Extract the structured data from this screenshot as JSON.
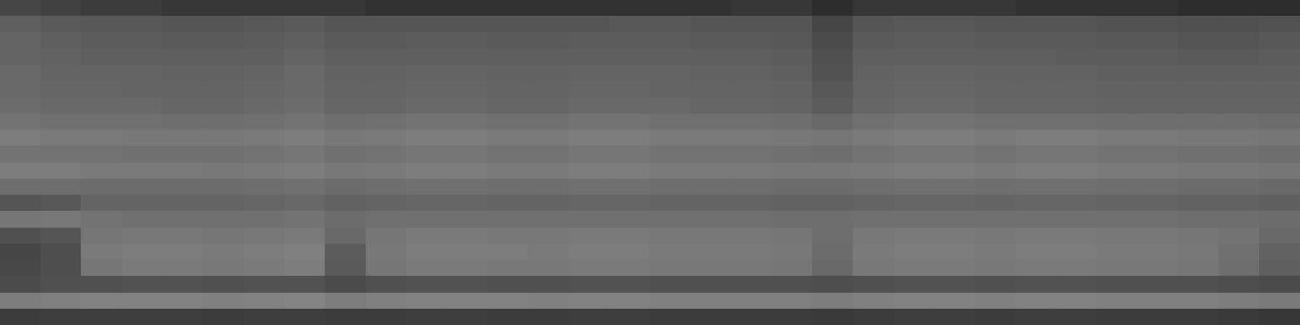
{
  "chart_data": {
    "type": "heatmap",
    "tick_labels": false,
    "zlim": [
      0,
      255
    ],
    "cells": [
      [
        70,
        65,
        60,
        60,
        55,
        55,
        55,
        55,
        55,
        50,
        50,
        50,
        50,
        50,
        50,
        50,
        50,
        50,
        55,
        55,
        45,
        55,
        55,
        55,
        55,
        50,
        50,
        50,
        50,
        45,
        45,
        45
      ],
      [
        95,
        90,
        88,
        88,
        85,
        85,
        88,
        90,
        85,
        85,
        85,
        85,
        85,
        85,
        85,
        88,
        88,
        85,
        85,
        85,
        70,
        85,
        88,
        88,
        85,
        85,
        85,
        82,
        82,
        80,
        80,
        82
      ],
      [
        100,
        95,
        92,
        92,
        90,
        90,
        92,
        95,
        90,
        90,
        92,
        92,
        90,
        90,
        92,
        92,
        92,
        90,
        90,
        88,
        75,
        90,
        92,
        92,
        90,
        90,
        90,
        88,
        88,
        85,
        85,
        88
      ],
      [
        100,
        98,
        95,
        95,
        95,
        95,
        95,
        100,
        95,
        95,
        95,
        95,
        95,
        95,
        95,
        95,
        95,
        95,
        95,
        92,
        80,
        95,
        95,
        95,
        95,
        95,
        92,
        92,
        92,
        90,
        90,
        92
      ],
      [
        105,
        100,
        100,
        100,
        98,
        98,
        100,
        105,
        98,
        98,
        100,
        100,
        98,
        98,
        100,
        100,
        100,
        98,
        98,
        95,
        82,
        98,
        100,
        100,
        98,
        98,
        98,
        95,
        95,
        95,
        95,
        95
      ],
      [
        105,
        102,
        102,
        100,
        100,
        100,
        102,
        105,
        100,
        100,
        102,
        102,
        100,
        100,
        102,
        102,
        100,
        100,
        100,
        98,
        88,
        100,
        102,
        102,
        100,
        100,
        100,
        98,
        98,
        98,
        98,
        98
      ],
      [
        108,
        105,
        105,
        105,
        102,
        102,
        105,
        108,
        102,
        102,
        105,
        105,
        102,
        102,
        105,
        105,
        105,
        102,
        102,
        100,
        92,
        102,
        105,
        105,
        102,
        102,
        102,
        100,
        100,
        100,
        100,
        100
      ],
      [
        115,
        112,
        112,
        112,
        110,
        110,
        112,
        115,
        110,
        112,
        115,
        115,
        112,
        112,
        115,
        115,
        112,
        112,
        112,
        110,
        105,
        112,
        115,
        115,
        112,
        112,
        112,
        110,
        110,
        110,
        110,
        108
      ],
      [
        125,
        122,
        122,
        120,
        120,
        120,
        122,
        125,
        120,
        122,
        125,
        125,
        122,
        122,
        125,
        125,
        122,
        122,
        122,
        120,
        118,
        122,
        125,
        125,
        122,
        125,
        125,
        122,
        122,
        120,
        120,
        118
      ],
      [
        115,
        115,
        115,
        112,
        112,
        112,
        115,
        118,
        112,
        115,
        118,
        118,
        115,
        115,
        118,
        118,
        115,
        115,
        115,
        112,
        110,
        115,
        118,
        118,
        115,
        118,
        118,
        115,
        115,
        112,
        112,
        110
      ],
      [
        125,
        125,
        122,
        122,
        122,
        120,
        122,
        125,
        120,
        122,
        125,
        125,
        122,
        122,
        125,
        125,
        122,
        122,
        122,
        120,
        120,
        122,
        125,
        125,
        122,
        125,
        125,
        122,
        122,
        120,
        120,
        118
      ],
      [
        110,
        110,
        108,
        108,
        108,
        108,
        110,
        112,
        108,
        110,
        112,
        112,
        110,
        110,
        112,
        112,
        110,
        110,
        110,
        108,
        108,
        110,
        112,
        112,
        110,
        112,
        112,
        110,
        110,
        108,
        108,
        105
      ],
      [
        85,
        88,
        100,
        100,
        100,
        100,
        102,
        104,
        98,
        100,
        102,
        102,
        100,
        100,
        102,
        102,
        100,
        100,
        100,
        98,
        98,
        100,
        102,
        102,
        100,
        102,
        102,
        100,
        100,
        98,
        98,
        95
      ],
      [
        118,
        120,
        115,
        112,
        112,
        112,
        112,
        115,
        108,
        112,
        112,
        112,
        112,
        112,
        112,
        112,
        112,
        112,
        112,
        110,
        110,
        112,
        112,
        112,
        112,
        112,
        112,
        112,
        112,
        110,
        110,
        108
      ],
      [
        80,
        85,
        118,
        120,
        120,
        118,
        120,
        122,
        105,
        118,
        122,
        122,
        120,
        120,
        122,
        122,
        120,
        120,
        120,
        118,
        110,
        120,
        122,
        122,
        120,
        122,
        122,
        120,
        120,
        118,
        115,
        105
      ],
      [
        70,
        78,
        122,
        125,
        125,
        122,
        125,
        128,
        92,
        120,
        125,
        125,
        125,
        122,
        125,
        125,
        122,
        122,
        122,
        120,
        108,
        122,
        125,
        125,
        122,
        125,
        125,
        122,
        122,
        120,
        112,
        98
      ],
      [
        72,
        78,
        118,
        122,
        122,
        120,
        122,
        125,
        90,
        118,
        122,
        122,
        120,
        120,
        122,
        122,
        120,
        120,
        120,
        118,
        105,
        120,
        122,
        122,
        120,
        122,
        122,
        120,
        120,
        118,
        110,
        95
      ],
      [
        75,
        80,
        80,
        82,
        82,
        80,
        82,
        82,
        75,
        80,
        82,
        82,
        80,
        80,
        82,
        82,
        80,
        80,
        80,
        80,
        78,
        80,
        82,
        82,
        80,
        82,
        82,
        80,
        80,
        80,
        78,
        75
      ],
      [
        125,
        128,
        130,
        130,
        130,
        128,
        130,
        132,
        125,
        128,
        130,
        130,
        130,
        128,
        130,
        130,
        128,
        128,
        128,
        128,
        125,
        128,
        130,
        130,
        128,
        130,
        130,
        128,
        128,
        128,
        125,
        122
      ],
      [
        60,
        62,
        62,
        62,
        62,
        60,
        62,
        62,
        60,
        60,
        62,
        62,
        60,
        60,
        62,
        62,
        60,
        60,
        60,
        60,
        58,
        60,
        62,
        62,
        60,
        62,
        62,
        60,
        60,
        60,
        58,
        55
      ]
    ]
  }
}
